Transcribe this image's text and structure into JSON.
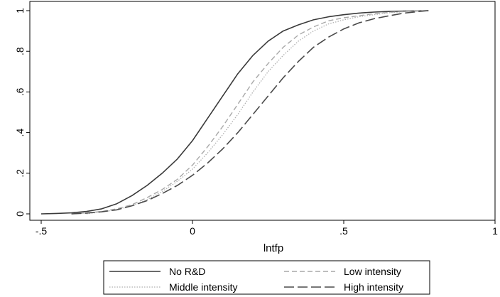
{
  "chart_data": {
    "type": "line",
    "title": "",
    "xlabel": "lntfp",
    "ylabel": "",
    "xlim": [
      -0.5,
      1
    ],
    "ylim": [
      0,
      1
    ],
    "x_ticks": [
      -0.5,
      0,
      0.5,
      1
    ],
    "x_tick_labels": [
      "-.5",
      "0",
      ".5",
      "1"
    ],
    "y_ticks": [
      0,
      0.2,
      0.4,
      0.6,
      0.8,
      1
    ],
    "y_tick_labels": [
      "0",
      ".2",
      ".4",
      ".6",
      ".8",
      "1"
    ],
    "grid": false,
    "legend_position": "bottom",
    "series": [
      {
        "name": "No R&D",
        "style": "solid",
        "color": "#3a3a3a",
        "x": [
          -0.5,
          -0.45,
          -0.4,
          -0.35,
          -0.3,
          -0.25,
          -0.2,
          -0.15,
          -0.1,
          -0.05,
          0,
          0.05,
          0.1,
          0.15,
          0.2,
          0.25,
          0.3,
          0.35,
          0.4,
          0.45,
          0.5,
          0.55,
          0.6,
          0.65,
          0.7,
          0.75,
          0.78
        ],
        "y": [
          0.0,
          0.002,
          0.005,
          0.012,
          0.025,
          0.05,
          0.09,
          0.14,
          0.2,
          0.27,
          0.36,
          0.47,
          0.58,
          0.69,
          0.78,
          0.85,
          0.9,
          0.93,
          0.955,
          0.97,
          0.98,
          0.988,
          0.993,
          0.996,
          0.998,
          0.999,
          1.0
        ]
      },
      {
        "name": "Low intensity",
        "style": "dashed-short",
        "color": "#a8a8a8",
        "x": [
          -0.4,
          -0.35,
          -0.3,
          -0.25,
          -0.2,
          -0.15,
          -0.1,
          -0.05,
          0,
          0.05,
          0.1,
          0.15,
          0.2,
          0.25,
          0.3,
          0.35,
          0.4,
          0.45,
          0.5,
          0.55,
          0.6,
          0.65,
          0.7,
          0.75,
          0.78
        ],
        "y": [
          0.0,
          0.005,
          0.012,
          0.025,
          0.045,
          0.08,
          0.12,
          0.17,
          0.24,
          0.33,
          0.43,
          0.54,
          0.65,
          0.74,
          0.82,
          0.88,
          0.92,
          0.95,
          0.965,
          0.975,
          0.985,
          0.992,
          0.996,
          0.999,
          1.0
        ]
      },
      {
        "name": "Middle intensity",
        "style": "dotted",
        "color": "#b0b0b0",
        "x": [
          -0.35,
          -0.3,
          -0.25,
          -0.2,
          -0.15,
          -0.1,
          -0.05,
          0,
          0.05,
          0.1,
          0.15,
          0.2,
          0.25,
          0.3,
          0.35,
          0.4,
          0.45,
          0.5,
          0.55,
          0.6,
          0.65,
          0.7,
          0.75,
          0.78
        ],
        "y": [
          0.0,
          0.01,
          0.02,
          0.04,
          0.07,
          0.11,
          0.16,
          0.22,
          0.3,
          0.39,
          0.49,
          0.6,
          0.7,
          0.78,
          0.85,
          0.9,
          0.935,
          0.955,
          0.97,
          0.98,
          0.99,
          0.995,
          0.998,
          1.0
        ]
      },
      {
        "name": "High intensity",
        "style": "dashed-long",
        "color": "#4a4a4a",
        "x": [
          -0.4,
          -0.35,
          -0.3,
          -0.25,
          -0.2,
          -0.15,
          -0.1,
          -0.05,
          0,
          0.05,
          0.1,
          0.15,
          0.2,
          0.25,
          0.3,
          0.35,
          0.4,
          0.45,
          0.5,
          0.55,
          0.6,
          0.65,
          0.7,
          0.75,
          0.78
        ],
        "y": [
          0.0,
          0.004,
          0.01,
          0.02,
          0.04,
          0.065,
          0.1,
          0.14,
          0.19,
          0.25,
          0.32,
          0.4,
          0.49,
          0.58,
          0.67,
          0.75,
          0.82,
          0.87,
          0.91,
          0.94,
          0.96,
          0.975,
          0.988,
          0.996,
          1.0
        ]
      }
    ]
  }
}
